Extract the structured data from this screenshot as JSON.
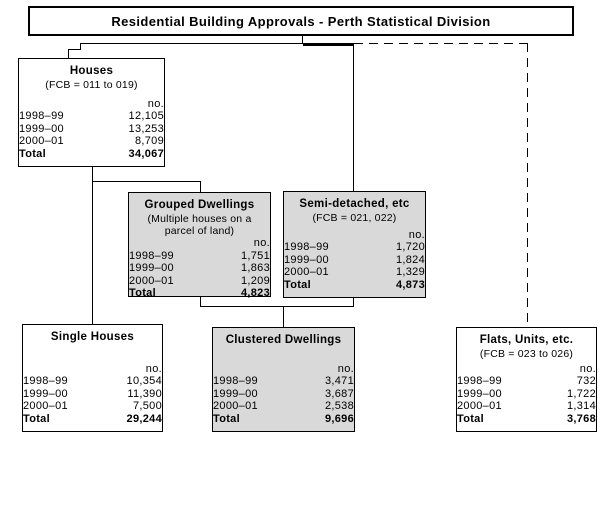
{
  "title": "Residential Building Approvals - Perth Statistical Division",
  "labels": {
    "unit": "no.",
    "total": "Total"
  },
  "boxes": {
    "houses": {
      "title": "Houses",
      "subtitle": "(FCB = 011 to 019)",
      "rows": [
        [
          "1998–99",
          "12,105"
        ],
        [
          "1999–00",
          "13,253"
        ],
        [
          "2000–01",
          "8,709"
        ]
      ],
      "total": "34,067"
    },
    "grouped": {
      "title": "Grouped Dwellings",
      "subtitle": "(Multiple houses on a parcel of land)",
      "rows": [
        [
          "1998–99",
          "1,751"
        ],
        [
          "1999–00",
          "1,863"
        ],
        [
          "2000–01",
          "1,209"
        ]
      ],
      "total": "4,823"
    },
    "semi": {
      "title": "Semi-detached, etc",
      "subtitle": "(FCB = 021, 022)",
      "rows": [
        [
          "1998–99",
          "1,720"
        ],
        [
          "1999–00",
          "1,824"
        ],
        [
          "2000–01",
          "1,329"
        ]
      ],
      "total": "4,873"
    },
    "single": {
      "title": "Single Houses",
      "subtitle": "",
      "rows": [
        [
          "1998–99",
          "10,354"
        ],
        [
          "1999–00",
          "11,390"
        ],
        [
          "2000–01",
          "7,500"
        ]
      ],
      "total": "29,244"
    },
    "clustered": {
      "title": "Clustered Dwellings",
      "subtitle": "",
      "rows": [
        [
          "1998–99",
          "3,471"
        ],
        [
          "1999–00",
          "3,687"
        ],
        [
          "2000–01",
          "2,538"
        ]
      ],
      "total": "9,696"
    },
    "flats": {
      "title": "Flats, Units, etc.",
      "subtitle": "(FCB = 023 to 026)",
      "rows": [
        [
          "1998–99",
          "732"
        ],
        [
          "1999–00",
          "1,722"
        ],
        [
          "2000–01",
          "1,314"
        ]
      ],
      "total": "3,768"
    }
  },
  "colors": {
    "box_gray": "#d9d9d9",
    "box_white": "#ffffff",
    "line": "#000000"
  }
}
